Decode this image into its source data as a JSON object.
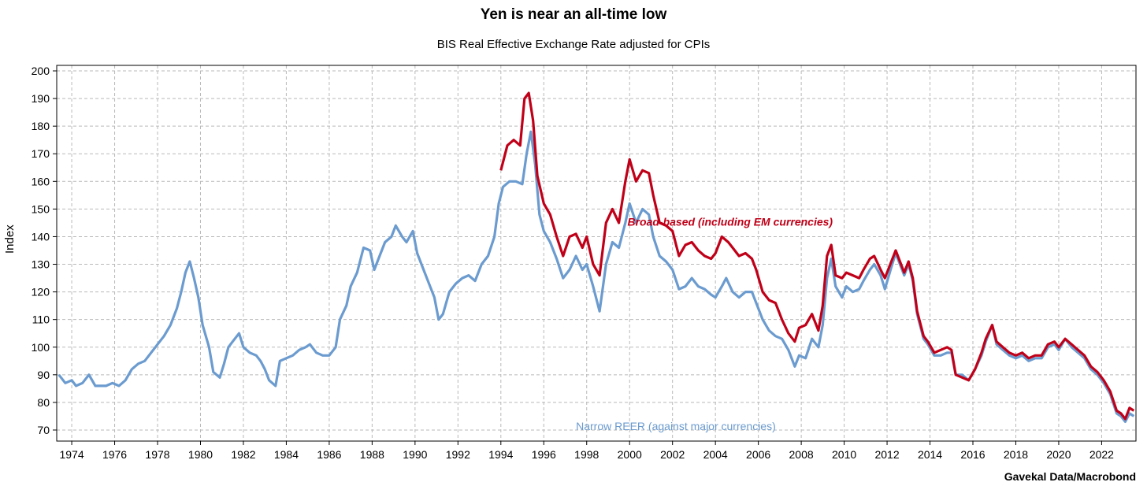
{
  "header": {
    "title": "Yen is near an all-time low",
    "subtitle": "BIS Real Effective Exchange Rate adjusted for CPIs",
    "source": "Gavekal Data/Macrobond"
  },
  "chart_data": {
    "type": "line",
    "title": "Yen is near an all-time low",
    "subtitle": "BIS Real Effective Exchange Rate adjusted for CPIs",
    "xlabel": "",
    "ylabel": "Index",
    "xlim": [
      1973.3,
      2023.6
    ],
    "ylim": [
      66,
      202
    ],
    "yticks": [
      70,
      80,
      90,
      100,
      110,
      120,
      130,
      140,
      150,
      160,
      170,
      180,
      190,
      200
    ],
    "xticks": [
      1974,
      1976,
      1978,
      1980,
      1982,
      1984,
      1986,
      1988,
      1990,
      1992,
      1994,
      1996,
      1998,
      2000,
      2002,
      2004,
      2006,
      2008,
      2010,
      2012,
      2014,
      2016,
      2018,
      2020,
      2022
    ],
    "grid": true,
    "series": [
      {
        "name": "Narrow REER (against major currencies)",
        "color": "#6b9bcf",
        "points": [
          [
            1973.4,
            90
          ],
          [
            1973.7,
            87
          ],
          [
            1974.0,
            88
          ],
          [
            1974.2,
            86
          ],
          [
            1974.5,
            87
          ],
          [
            1974.8,
            90
          ],
          [
            1975.1,
            86
          ],
          [
            1975.3,
            86
          ],
          [
            1975.6,
            86
          ],
          [
            1975.9,
            87
          ],
          [
            1976.2,
            86
          ],
          [
            1976.5,
            88
          ],
          [
            1976.8,
            92
          ],
          [
            1977.1,
            94
          ],
          [
            1977.4,
            95
          ],
          [
            1977.7,
            98
          ],
          [
            1978.0,
            101
          ],
          [
            1978.3,
            104
          ],
          [
            1978.6,
            108
          ],
          [
            1978.9,
            114
          ],
          [
            1979.1,
            120
          ],
          [
            1979.3,
            127
          ],
          [
            1979.5,
            131
          ],
          [
            1979.7,
            125
          ],
          [
            1979.9,
            118
          ],
          [
            1980.1,
            108
          ],
          [
            1980.4,
            100
          ],
          [
            1980.6,
            91
          ],
          [
            1980.9,
            89
          ],
          [
            1981.1,
            94
          ],
          [
            1981.3,
            100
          ],
          [
            1981.5,
            102
          ],
          [
            1981.8,
            105
          ],
          [
            1982.0,
            100
          ],
          [
            1982.3,
            98
          ],
          [
            1982.6,
            97
          ],
          [
            1982.8,
            95
          ],
          [
            1983.0,
            92
          ],
          [
            1983.2,
            88
          ],
          [
            1983.5,
            86
          ],
          [
            1983.7,
            95
          ],
          [
            1984.0,
            96
          ],
          [
            1984.3,
            97
          ],
          [
            1984.6,
            99
          ],
          [
            1984.9,
            100
          ],
          [
            1985.1,
            101
          ],
          [
            1985.4,
            98
          ],
          [
            1985.7,
            97
          ],
          [
            1986.0,
            97
          ],
          [
            1986.3,
            100
          ],
          [
            1986.5,
            110
          ],
          [
            1986.8,
            115
          ],
          [
            1987.0,
            122
          ],
          [
            1987.3,
            127
          ],
          [
            1987.6,
            136
          ],
          [
            1987.9,
            135
          ],
          [
            1988.1,
            128
          ],
          [
            1988.3,
            132
          ],
          [
            1988.6,
            138
          ],
          [
            1988.9,
            140
          ],
          [
            1989.1,
            144
          ],
          [
            1989.4,
            140
          ],
          [
            1989.6,
            138
          ],
          [
            1989.9,
            142
          ],
          [
            1990.1,
            134
          ],
          [
            1990.4,
            128
          ],
          [
            1990.6,
            124
          ],
          [
            1990.9,
            118
          ],
          [
            1991.1,
            110
          ],
          [
            1991.3,
            112
          ],
          [
            1991.6,
            120
          ],
          [
            1991.9,
            123
          ],
          [
            1992.2,
            125
          ],
          [
            1992.5,
            126
          ],
          [
            1992.8,
            124
          ],
          [
            1993.1,
            130
          ],
          [
            1993.4,
            133
          ],
          [
            1993.7,
            140
          ],
          [
            1993.9,
            152
          ],
          [
            1994.1,
            158
          ],
          [
            1994.4,
            160
          ],
          [
            1994.7,
            160
          ],
          [
            1995.0,
            159
          ],
          [
            1995.2,
            170
          ],
          [
            1995.4,
            178
          ],
          [
            1995.6,
            166
          ],
          [
            1995.8,
            148
          ],
          [
            1996.0,
            142
          ],
          [
            1996.3,
            138
          ],
          [
            1996.6,
            132
          ],
          [
            1996.9,
            125
          ],
          [
            1997.2,
            128
          ],
          [
            1997.5,
            133
          ],
          [
            1997.8,
            128
          ],
          [
            1998.0,
            130
          ],
          [
            1998.3,
            122
          ],
          [
            1998.6,
            113
          ],
          [
            1998.9,
            130
          ],
          [
            1999.2,
            138
          ],
          [
            1999.5,
            136
          ],
          [
            1999.8,
            145
          ],
          [
            2000.0,
            152
          ],
          [
            2000.3,
            145
          ],
          [
            2000.6,
            150
          ],
          [
            2000.9,
            148
          ],
          [
            2001.1,
            140
          ],
          [
            2001.4,
            133
          ],
          [
            2001.7,
            131
          ],
          [
            2002.0,
            128
          ],
          [
            2002.3,
            121
          ],
          [
            2002.6,
            122
          ],
          [
            2002.9,
            125
          ],
          [
            2003.2,
            122
          ],
          [
            2003.5,
            121
          ],
          [
            2003.8,
            119
          ],
          [
            2004.0,
            118
          ],
          [
            2004.3,
            122
          ],
          [
            2004.5,
            125
          ],
          [
            2004.8,
            120
          ],
          [
            2005.1,
            118
          ],
          [
            2005.4,
            120
          ],
          [
            2005.7,
            120
          ],
          [
            2005.9,
            116
          ],
          [
            2006.2,
            110
          ],
          [
            2006.5,
            106
          ],
          [
            2006.8,
            104
          ],
          [
            2007.1,
            103
          ],
          [
            2007.4,
            99
          ],
          [
            2007.7,
            93
          ],
          [
            2007.9,
            97
          ],
          [
            2008.2,
            96
          ],
          [
            2008.5,
            103
          ],
          [
            2008.8,
            100
          ],
          [
            2009.0,
            108
          ],
          [
            2009.2,
            125
          ],
          [
            2009.4,
            132
          ],
          [
            2009.6,
            122
          ],
          [
            2009.9,
            118
          ],
          [
            2010.1,
            122
          ],
          [
            2010.4,
            120
          ],
          [
            2010.7,
            121
          ],
          [
            2010.9,
            124
          ],
          [
            2011.2,
            128
          ],
          [
            2011.4,
            130
          ],
          [
            2011.7,
            126
          ],
          [
            2011.9,
            121
          ],
          [
            2012.2,
            129
          ],
          [
            2012.4,
            134
          ],
          [
            2012.6,
            130
          ],
          [
            2012.8,
            126
          ],
          [
            2013.0,
            130
          ],
          [
            2013.2,
            124
          ],
          [
            2013.4,
            112
          ],
          [
            2013.7,
            103
          ],
          [
            2013.9,
            101
          ],
          [
            2014.2,
            97
          ],
          [
            2014.5,
            97
          ],
          [
            2014.8,
            98
          ],
          [
            2015.0,
            98
          ],
          [
            2015.2,
            90
          ],
          [
            2015.5,
            90
          ],
          [
            2015.8,
            88
          ],
          [
            2016.1,
            92
          ],
          [
            2016.4,
            97
          ],
          [
            2016.6,
            102
          ],
          [
            2016.9,
            108
          ],
          [
            2017.1,
            101
          ],
          [
            2017.4,
            99
          ],
          [
            2017.7,
            97
          ],
          [
            2018.0,
            96
          ],
          [
            2018.3,
            97
          ],
          [
            2018.6,
            95
          ],
          [
            2018.9,
            96
          ],
          [
            2019.2,
            96
          ],
          [
            2019.5,
            100
          ],
          [
            2019.8,
            101
          ],
          [
            2020.0,
            99
          ],
          [
            2020.3,
            103
          ],
          [
            2020.6,
            100
          ],
          [
            2020.9,
            98
          ],
          [
            2021.2,
            96
          ],
          [
            2021.5,
            92
          ],
          [
            2021.8,
            90
          ],
          [
            2022.1,
            87
          ],
          [
            2022.4,
            83
          ],
          [
            2022.7,
            76
          ],
          [
            2022.9,
            75
          ],
          [
            2023.1,
            73
          ],
          [
            2023.3,
            76
          ],
          [
            2023.5,
            75
          ]
        ]
      },
      {
        "name": "Broad-based (including EM currencies)",
        "color": "#c00018",
        "points": [
          [
            1994.0,
            164
          ],
          [
            1994.3,
            173
          ],
          [
            1994.6,
            175
          ],
          [
            1994.9,
            173
          ],
          [
            1995.1,
            190
          ],
          [
            1995.3,
            192
          ],
          [
            1995.5,
            182
          ],
          [
            1995.7,
            162
          ],
          [
            1996.0,
            152
          ],
          [
            1996.3,
            148
          ],
          [
            1996.6,
            140
          ],
          [
            1996.9,
            133
          ],
          [
            1997.2,
            140
          ],
          [
            1997.5,
            141
          ],
          [
            1997.8,
            136
          ],
          [
            1998.0,
            140
          ],
          [
            1998.3,
            130
          ],
          [
            1998.6,
            126
          ],
          [
            1998.9,
            145
          ],
          [
            1999.2,
            150
          ],
          [
            1999.5,
            145
          ],
          [
            1999.8,
            160
          ],
          [
            2000.0,
            168
          ],
          [
            2000.3,
            160
          ],
          [
            2000.6,
            164
          ],
          [
            2000.9,
            163
          ],
          [
            2001.1,
            155
          ],
          [
            2001.4,
            145
          ],
          [
            2001.7,
            144
          ],
          [
            2002.0,
            142
          ],
          [
            2002.3,
            133
          ],
          [
            2002.6,
            137
          ],
          [
            2002.9,
            138
          ],
          [
            2003.2,
            135
          ],
          [
            2003.5,
            133
          ],
          [
            2003.8,
            132
          ],
          [
            2004.0,
            134
          ],
          [
            2004.3,
            140
          ],
          [
            2004.6,
            138
          ],
          [
            2004.8,
            136
          ],
          [
            2005.1,
            133
          ],
          [
            2005.4,
            134
          ],
          [
            2005.7,
            132
          ],
          [
            2005.9,
            128
          ],
          [
            2006.2,
            120
          ],
          [
            2006.5,
            117
          ],
          [
            2006.8,
            116
          ],
          [
            2007.1,
            110
          ],
          [
            2007.4,
            105
          ],
          [
            2007.7,
            102
          ],
          [
            2007.9,
            107
          ],
          [
            2008.2,
            108
          ],
          [
            2008.5,
            112
          ],
          [
            2008.8,
            106
          ],
          [
            2009.0,
            115
          ],
          [
            2009.2,
            133
          ],
          [
            2009.4,
            137
          ],
          [
            2009.6,
            126
          ],
          [
            2009.9,
            125
          ],
          [
            2010.1,
            127
          ],
          [
            2010.4,
            126
          ],
          [
            2010.7,
            125
          ],
          [
            2010.9,
            128
          ],
          [
            2011.2,
            132
          ],
          [
            2011.4,
            133
          ],
          [
            2011.7,
            128
          ],
          [
            2011.9,
            125
          ],
          [
            2012.2,
            131
          ],
          [
            2012.4,
            135
          ],
          [
            2012.6,
            131
          ],
          [
            2012.8,
            127
          ],
          [
            2013.0,
            131
          ],
          [
            2013.2,
            125
          ],
          [
            2013.4,
            113
          ],
          [
            2013.7,
            104
          ],
          [
            2013.9,
            102
          ],
          [
            2014.2,
            98
          ],
          [
            2014.5,
            99
          ],
          [
            2014.8,
            100
          ],
          [
            2015.0,
            99
          ],
          [
            2015.2,
            90
          ],
          [
            2015.5,
            89
          ],
          [
            2015.8,
            88
          ],
          [
            2016.1,
            92
          ],
          [
            2016.4,
            98
          ],
          [
            2016.6,
            103
          ],
          [
            2016.9,
            108
          ],
          [
            2017.1,
            102
          ],
          [
            2017.4,
            100
          ],
          [
            2017.7,
            98
          ],
          [
            2018.0,
            97
          ],
          [
            2018.3,
            98
          ],
          [
            2018.6,
            96
          ],
          [
            2018.9,
            97
          ],
          [
            2019.2,
            97
          ],
          [
            2019.5,
            101
          ],
          [
            2019.8,
            102
          ],
          [
            2020.0,
            100
          ],
          [
            2020.3,
            103
          ],
          [
            2020.6,
            101
          ],
          [
            2020.9,
            99
          ],
          [
            2021.2,
            97
          ],
          [
            2021.5,
            93
          ],
          [
            2021.8,
            91
          ],
          [
            2022.1,
            88
          ],
          [
            2022.4,
            84
          ],
          [
            2022.7,
            77
          ],
          [
            2022.9,
            76
          ],
          [
            2023.1,
            74
          ],
          [
            2023.3,
            78
          ],
          [
            2023.5,
            77
          ]
        ]
      }
    ],
    "annotations": [
      {
        "text": "Broad-based (including EM currencies)",
        "color": "#c00018",
        "x": 1999.9,
        "y": 144
      },
      {
        "text": "Narrow REER (against major currencies)",
        "color": "#6b9bcf",
        "x": 1997.5,
        "y": 70
      }
    ]
  }
}
